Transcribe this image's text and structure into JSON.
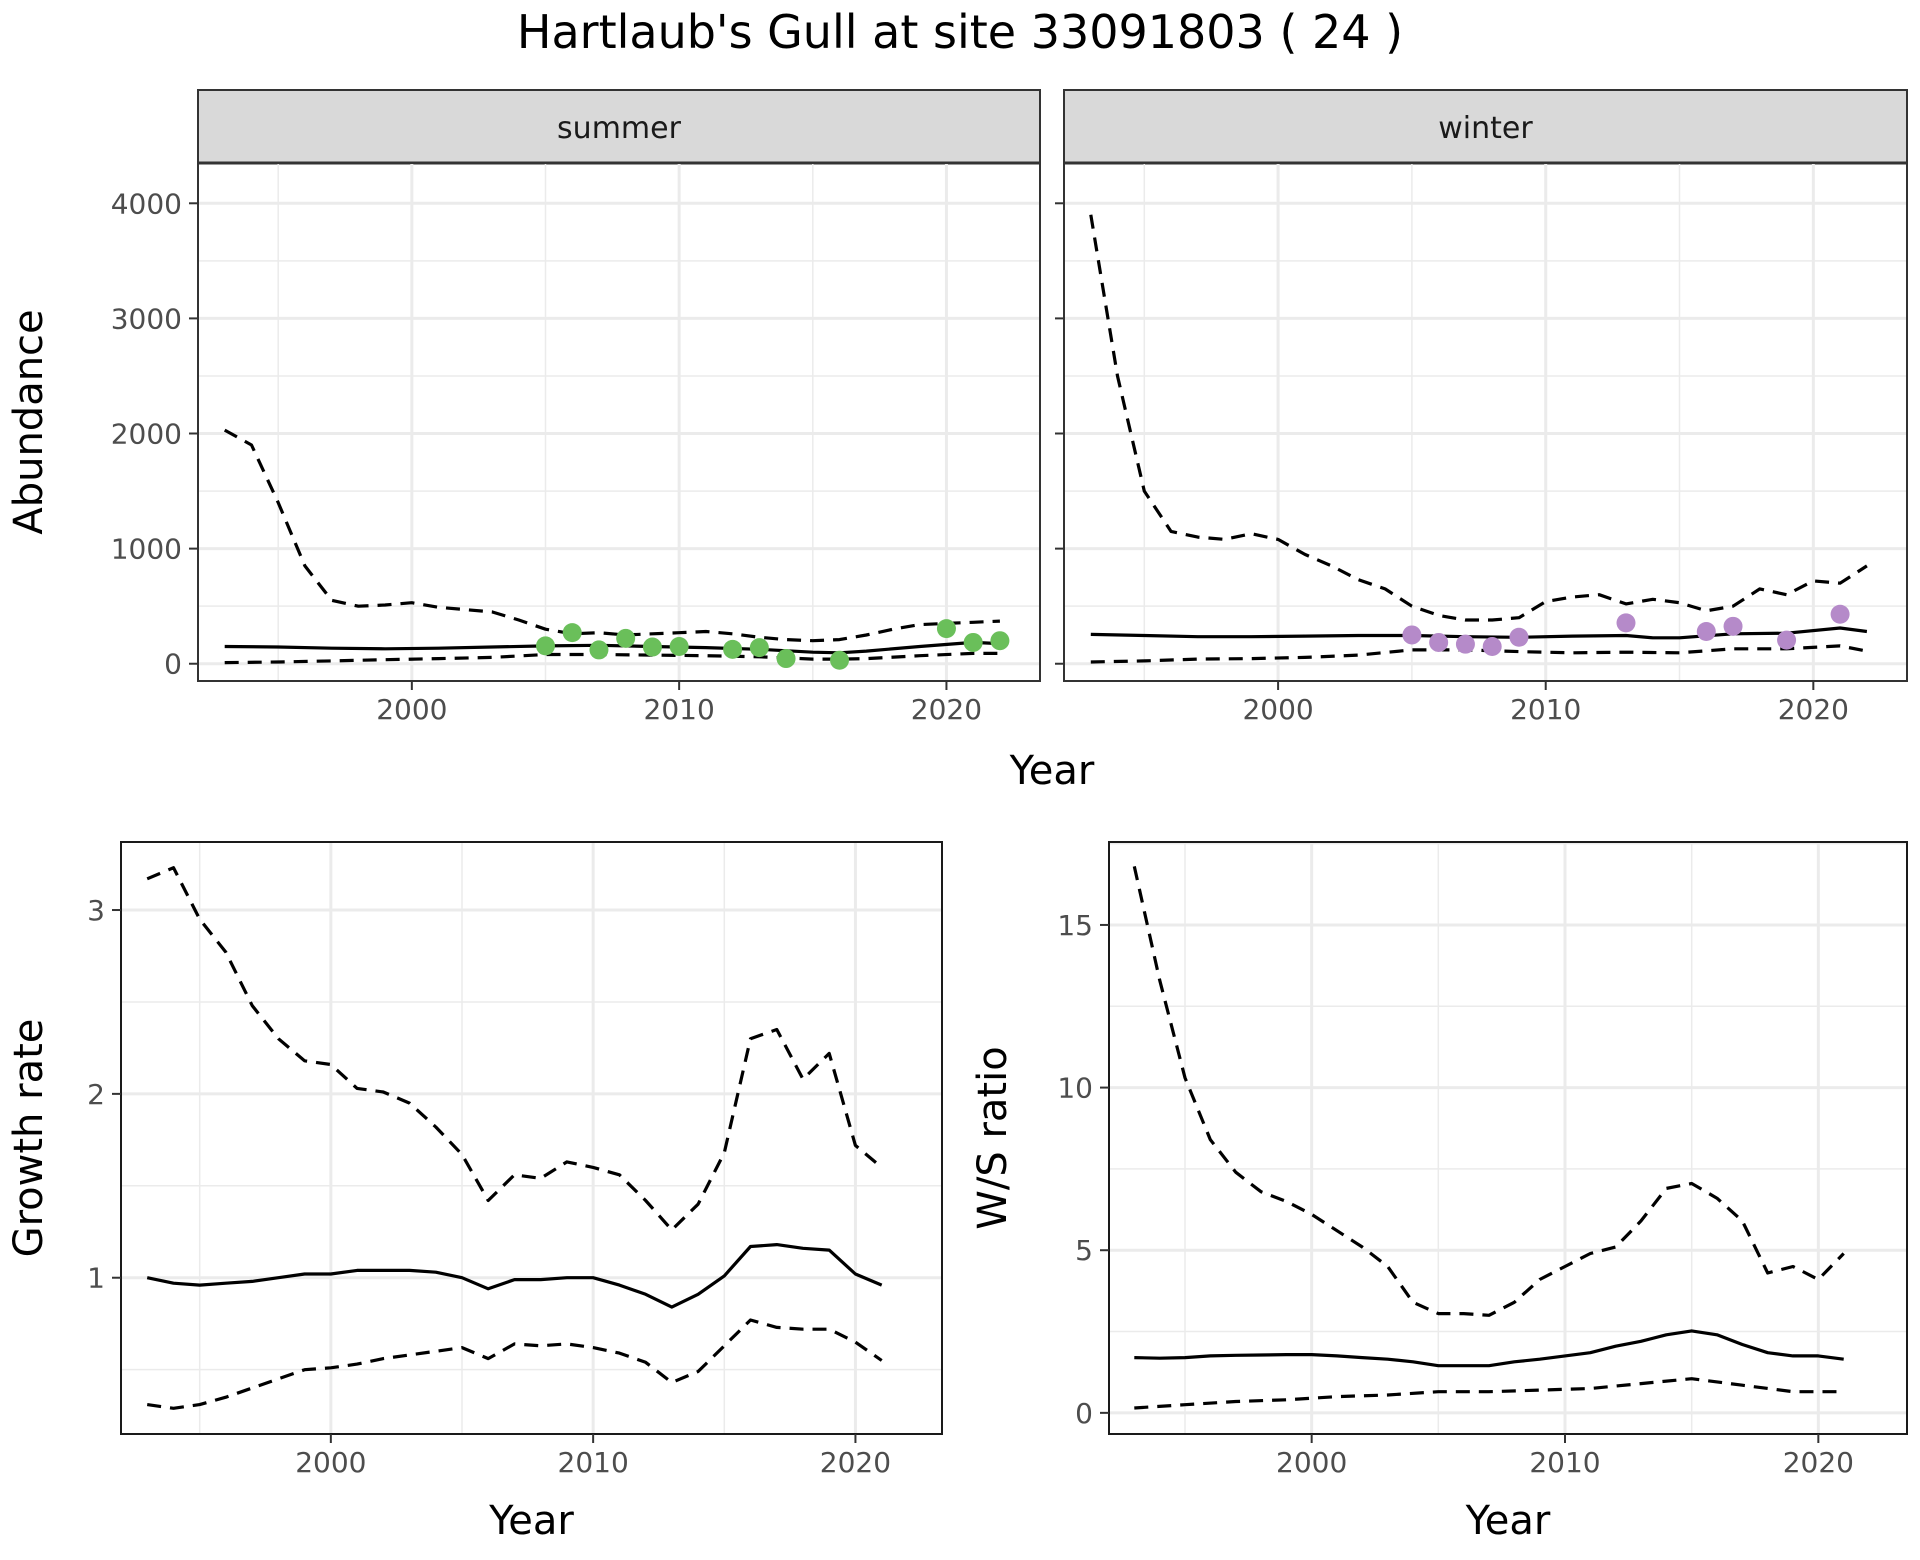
{
  "title": "Hartlaub's Gull at site 33091803 ( 24 )",
  "colors": {
    "summer_points": "#6abf5a",
    "winter_points": "#b58ac9",
    "grid": "#ebebeb",
    "strip_bg": "#d9d9d9"
  },
  "chart_data": [
    {
      "type": "line",
      "facet": "summer",
      "xlabel": "Year",
      "ylabel": "Abundance",
      "xlim": [
        1992,
        2023.5
      ],
      "ylim": [
        -150,
        4350
      ],
      "xticks": [
        2000,
        2010,
        2020
      ],
      "yticks": [
        0,
        1000,
        2000,
        3000,
        4000
      ],
      "grid": true,
      "series": [
        {
          "style": "solid",
          "x": [
            1993,
            1995,
            1997,
            1999,
            2001,
            2003,
            2005,
            2007,
            2009,
            2011,
            2013,
            2015,
            2016,
            2017,
            2019,
            2021,
            2022
          ],
          "y": [
            150,
            145,
            135,
            130,
            135,
            145,
            155,
            160,
            150,
            140,
            125,
            100,
            95,
            110,
            150,
            185,
            175
          ]
        },
        {
          "style": "dashed",
          "x": [
            1993,
            1994,
            1995,
            1996,
            1997,
            1998,
            1999,
            2000,
            2001,
            2002,
            2003,
            2004,
            2005,
            2006,
            2007,
            2008,
            2009,
            2010,
            2011,
            2012,
            2013,
            2014,
            2015,
            2016,
            2017,
            2018,
            2019,
            2020,
            2021,
            2022
          ],
          "y": [
            2030,
            1900,
            1400,
            850,
            550,
            500,
            510,
            530,
            490,
            470,
            450,
            380,
            300,
            260,
            270,
            250,
            260,
            270,
            280,
            260,
            230,
            210,
            200,
            210,
            250,
            300,
            340,
            350,
            360,
            370
          ]
        },
        {
          "style": "dashed",
          "x": [
            1993,
            1995,
            1997,
            1999,
            2001,
            2003,
            2005,
            2007,
            2009,
            2011,
            2013,
            2015,
            2016,
            2017,
            2019,
            2021,
            2022
          ],
          "y": [
            10,
            15,
            25,
            35,
            45,
            55,
            80,
            80,
            75,
            70,
            60,
            40,
            40,
            45,
            70,
            90,
            90
          ]
        }
      ],
      "points": {
        "x": [
          2005,
          2006,
          2007,
          2008,
          2009,
          2010,
          2012,
          2013,
          2014,
          2016,
          2020,
          2021,
          2022
        ],
        "y": [
          155,
          270,
          120,
          220,
          145,
          150,
          125,
          140,
          45,
          30,
          305,
          185,
          200
        ]
      }
    },
    {
      "type": "line",
      "facet": "winter",
      "xlabel": "Year",
      "ylabel": "",
      "xlim": [
        1992,
        2023.5
      ],
      "ylim": [
        -150,
        4350
      ],
      "xticks": [
        2000,
        2010,
        2020
      ],
      "yticks": [
        0,
        1000,
        2000,
        3000,
        4000
      ],
      "grid": true,
      "series": [
        {
          "style": "solid",
          "x": [
            1993,
            1995,
            1997,
            1999,
            2001,
            2003,
            2005,
            2007,
            2009,
            2011,
            2013,
            2014,
            2015,
            2017,
            2019,
            2021,
            2022
          ],
          "y": [
            255,
            245,
            235,
            235,
            240,
            245,
            245,
            235,
            230,
            240,
            245,
            225,
            225,
            260,
            265,
            310,
            280
          ]
        },
        {
          "style": "dashed",
          "x": [
            1993,
            1994,
            1995,
            1996,
            1997,
            1998,
            1999,
            2000,
            2001,
            2002,
            2003,
            2004,
            2005,
            2006,
            2007,
            2008,
            2009,
            2010,
            2011,
            2012,
            2013,
            2014,
            2015,
            2016,
            2017,
            2018,
            2019,
            2020,
            2021,
            2022
          ],
          "y": [
            3900,
            2500,
            1500,
            1150,
            1100,
            1080,
            1130,
            1080,
            950,
            850,
            730,
            650,
            500,
            420,
            380,
            380,
            400,
            540,
            580,
            600,
            520,
            560,
            530,
            460,
            500,
            650,
            600,
            720,
            700,
            850
          ]
        },
        {
          "style": "dashed",
          "x": [
            1993,
            1995,
            1997,
            1999,
            2001,
            2003,
            2005,
            2007,
            2009,
            2011,
            2013,
            2015,
            2017,
            2019,
            2021,
            2022
          ],
          "y": [
            15,
            25,
            40,
            45,
            55,
            75,
            120,
            120,
            105,
            95,
            100,
            95,
            130,
            130,
            155,
            110
          ]
        }
      ],
      "points": {
        "x": [
          2005,
          2006,
          2007,
          2008,
          2009,
          2013,
          2016,
          2017,
          2019,
          2021
        ],
        "y": [
          250,
          185,
          170,
          150,
          230,
          355,
          280,
          325,
          205,
          430
        ]
      }
    },
    {
      "type": "line",
      "xlabel": "Year",
      "ylabel": "Growth rate",
      "xlim": [
        1992,
        2023.3
      ],
      "ylim": [
        0.15,
        3.37
      ],
      "xticks": [
        2000,
        2010,
        2020
      ],
      "yticks": [
        1,
        2,
        3
      ],
      "grid": true,
      "series": [
        {
          "style": "solid",
          "x": [
            1993,
            1994,
            1995,
            1996,
            1997,
            1998,
            1999,
            2000,
            2001,
            2002,
            2003,
            2004,
            2005,
            2006,
            2007,
            2008,
            2009,
            2010,
            2011,
            2012,
            2013,
            2014,
            2015,
            2016,
            2017,
            2018,
            2019,
            2020,
            2021
          ],
          "y": [
            1.0,
            0.97,
            0.96,
            0.97,
            0.98,
            1.0,
            1.02,
            1.02,
            1.04,
            1.04,
            1.04,
            1.03,
            1.0,
            0.94,
            0.99,
            0.99,
            1.0,
            1.0,
            0.96,
            0.91,
            0.84,
            0.91,
            1.01,
            1.17,
            1.18,
            1.16,
            1.15,
            1.02,
            0.96
          ]
        },
        {
          "style": "dashed",
          "x": [
            1993,
            1994,
            1995,
            1996,
            1997,
            1998,
            1999,
            2000,
            2001,
            2002,
            2003,
            2004,
            2005,
            2006,
            2007,
            2008,
            2009,
            2010,
            2011,
            2012,
            2013,
            2014,
            2015,
            2016,
            2017,
            2018,
            2019,
            2020,
            2021
          ],
          "y": [
            3.17,
            3.23,
            2.95,
            2.77,
            2.48,
            2.3,
            2.18,
            2.16,
            2.03,
            2.01,
            1.95,
            1.82,
            1.67,
            1.42,
            1.56,
            1.54,
            1.63,
            1.6,
            1.56,
            1.42,
            1.26,
            1.4,
            1.68,
            2.3,
            2.35,
            2.08,
            2.22,
            1.72,
            1.6
          ]
        },
        {
          "style": "dashed",
          "x": [
            1993,
            1994,
            1995,
            1996,
            1997,
            1998,
            1999,
            2000,
            2001,
            2002,
            2003,
            2004,
            2005,
            2006,
            2007,
            2008,
            2009,
            2010,
            2011,
            2012,
            2013,
            2014,
            2015,
            2016,
            2017,
            2018,
            2019,
            2020,
            2021
          ],
          "y": [
            0.31,
            0.29,
            0.31,
            0.35,
            0.4,
            0.45,
            0.5,
            0.51,
            0.53,
            0.56,
            0.58,
            0.6,
            0.62,
            0.56,
            0.64,
            0.63,
            0.64,
            0.62,
            0.59,
            0.54,
            0.43,
            0.49,
            0.63,
            0.77,
            0.73,
            0.72,
            0.72,
            0.65,
            0.55
          ]
        }
      ]
    },
    {
      "type": "line",
      "xlabel": "Year",
      "ylabel": "W/S ratio",
      "xlim": [
        1992,
        2023.5
      ],
      "ylim": [
        -0.65,
        17.55
      ],
      "xticks": [
        2000,
        2010,
        2020
      ],
      "yticks": [
        0,
        5,
        10,
        15
      ],
      "grid": true,
      "series": [
        {
          "style": "solid",
          "x": [
            1993,
            1994,
            1995,
            1996,
            1997,
            1998,
            1999,
            2000,
            2001,
            2002,
            2003,
            2004,
            2005,
            2006,
            2007,
            2008,
            2009,
            2010,
            2011,
            2012,
            2013,
            2014,
            2015,
            2016,
            2017,
            2018,
            2019,
            2020,
            2021
          ],
          "y": [
            1.7,
            1.68,
            1.7,
            1.75,
            1.77,
            1.78,
            1.79,
            1.79,
            1.75,
            1.7,
            1.65,
            1.57,
            1.45,
            1.45,
            1.45,
            1.57,
            1.65,
            1.75,
            1.85,
            2.05,
            2.2,
            2.4,
            2.52,
            2.4,
            2.1,
            1.85,
            1.75,
            1.75,
            1.65
          ]
        },
        {
          "style": "dashed",
          "x": [
            1993,
            1994,
            1995,
            1996,
            1997,
            1998,
            1999,
            2000,
            2001,
            2002,
            2003,
            2004,
            2005,
            2006,
            2007,
            2008,
            2009,
            2010,
            2011,
            2012,
            2013,
            2014,
            2015,
            2016,
            2017,
            2018,
            2019,
            2020,
            2021
          ],
          "y": [
            16.8,
            13.3,
            10.3,
            8.4,
            7.4,
            6.8,
            6.5,
            6.1,
            5.6,
            5.1,
            4.5,
            3.4,
            3.05,
            3.05,
            3.0,
            3.4,
            4.1,
            4.5,
            4.9,
            5.1,
            5.9,
            6.9,
            7.05,
            6.6,
            5.9,
            4.3,
            4.5,
            4.1,
            4.9
          ]
        },
        {
          "style": "dashed",
          "x": [
            1993,
            1995,
            1997,
            1999,
            2001,
            2003,
            2005,
            2007,
            2009,
            2011,
            2013,
            2015,
            2017,
            2019,
            2021
          ],
          "y": [
            0.15,
            0.25,
            0.35,
            0.4,
            0.5,
            0.55,
            0.65,
            0.65,
            0.7,
            0.75,
            0.9,
            1.05,
            0.85,
            0.65,
            0.65
          ]
        }
      ]
    }
  ]
}
